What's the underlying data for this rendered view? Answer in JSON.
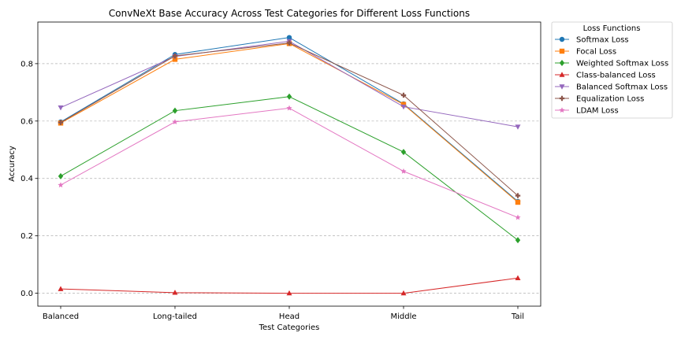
{
  "chart_data": {
    "type": "line",
    "title": "ConvNeXt Base Accuracy Across Test Categories for Different Loss Functions",
    "xlabel": "Test Categories",
    "ylabel": "Accuracy",
    "categories": [
      "Balanced",
      "Long-tailed",
      "Head",
      "Middle",
      "Tail"
    ],
    "ylim": [
      -0.045,
      0.945
    ],
    "yticks": [
      0.0,
      0.2,
      0.4,
      0.6,
      0.8
    ],
    "ytick_labels": [
      "0.0",
      "0.2",
      "0.4",
      "0.6",
      "0.8"
    ],
    "grid": "y-dashed",
    "legend": {
      "title": "Loss Functions",
      "placement": "outside-top-right"
    },
    "series": [
      {
        "name": "Softmax Loss",
        "color": "#1f77b4",
        "marker": "circle",
        "values": [
          0.597,
          0.832,
          0.891,
          0.66,
          0.32
        ]
      },
      {
        "name": "Focal Loss",
        "color": "#ff7f0e",
        "marker": "square",
        "values": [
          0.593,
          0.815,
          0.87,
          0.658,
          0.317
        ]
      },
      {
        "name": "Weighted Softmax Loss",
        "color": "#2ca02c",
        "marker": "diamond",
        "values": [
          0.408,
          0.636,
          0.685,
          0.492,
          0.185
        ]
      },
      {
        "name": "Class-balanced Loss",
        "color": "#d62728",
        "marker": "triangle-up",
        "values": [
          0.015,
          0.002,
          0.0,
          0.0,
          0.053
        ]
      },
      {
        "name": "Balanced Softmax Loss",
        "color": "#9467bd",
        "marker": "triangle-down",
        "values": [
          0.647,
          0.825,
          0.878,
          0.65,
          0.58
        ]
      },
      {
        "name": "Equalization Loss",
        "color": "#8c564b",
        "marker": "plus",
        "values": [
          0.595,
          0.827,
          0.872,
          0.69,
          0.34
        ]
      },
      {
        "name": "LDAM Loss",
        "color": "#e377c2",
        "marker": "star",
        "values": [
          0.377,
          0.597,
          0.645,
          0.425,
          0.264
        ]
      }
    ]
  }
}
